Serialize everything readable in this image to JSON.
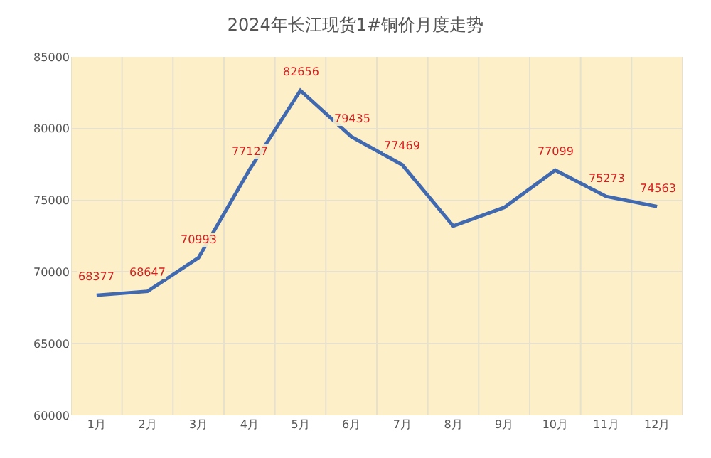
{
  "chart_data": {
    "type": "line",
    "title": "2024年长江现货1#铜价月度走势",
    "categories": [
      "1月",
      "2月",
      "3月",
      "4月",
      "5月",
      "6月",
      "7月",
      "8月",
      "9月",
      "10月",
      "11月",
      "12月"
    ],
    "series": [
      {
        "color": "#4169b0",
        "values": [
          68377,
          68647,
          70993,
          77127,
          82656,
          79435,
          77469,
          73200,
          74500,
          77099,
          75273,
          74563
        ],
        "value_labels": [
          "68377",
          "68647",
          "70993",
          "77127",
          "82656",
          "79435",
          "77469",
          null,
          null,
          "77099",
          "75273",
          "74563"
        ]
      }
    ],
    "ylim": [
      60000,
      85000
    ],
    "yticks": [
      60000,
      65000,
      70000,
      75000,
      80000,
      85000
    ],
    "grid": true,
    "marker": "none",
    "line_style": "solid"
  }
}
